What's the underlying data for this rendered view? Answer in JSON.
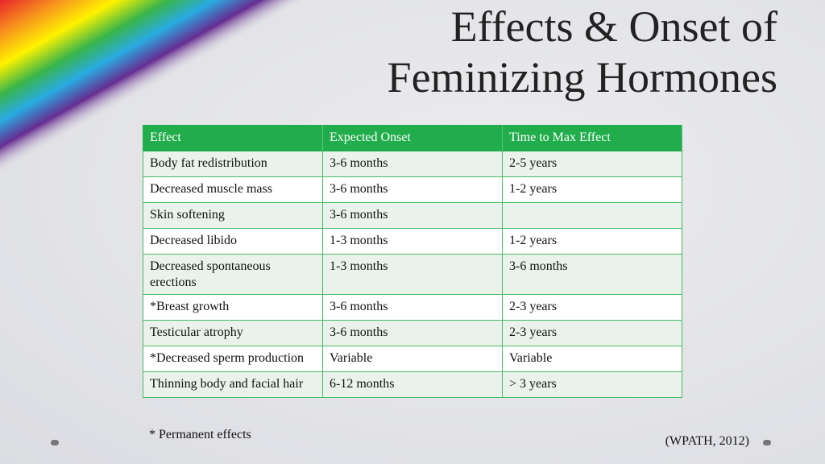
{
  "title_lines": [
    "Effects & Onset of",
    "Feminizing Hormones"
  ],
  "table": {
    "header": [
      "Effect",
      "Expected Onset",
      "Time to Max Effect"
    ],
    "rows": [
      [
        "Body fat redistribution",
        "3-6 months",
        "2-5 years"
      ],
      [
        "Decreased muscle mass",
        "3-6 months",
        "1-2 years"
      ],
      [
        "Skin softening",
        "3-6 months",
        null
      ],
      [
        "Decreased libido",
        "1-3 months",
        "1-2 years"
      ],
      [
        "Decreased spontaneous erections",
        "1-3 months",
        "3-6 months"
      ],
      [
        "*Breast growth",
        "3-6 months",
        "2-3 years"
      ],
      [
        "Testicular atrophy",
        "3-6 months",
        "2-3 years"
      ],
      [
        "*Decreased sperm production",
        "Variable",
        "Variable"
      ],
      [
        "Thinning body and facial hair",
        "6-12 months",
        "> 3 years"
      ]
    ]
  },
  "footnote": "* Permanent effects",
  "citation": "(WPATH, 2012)"
}
